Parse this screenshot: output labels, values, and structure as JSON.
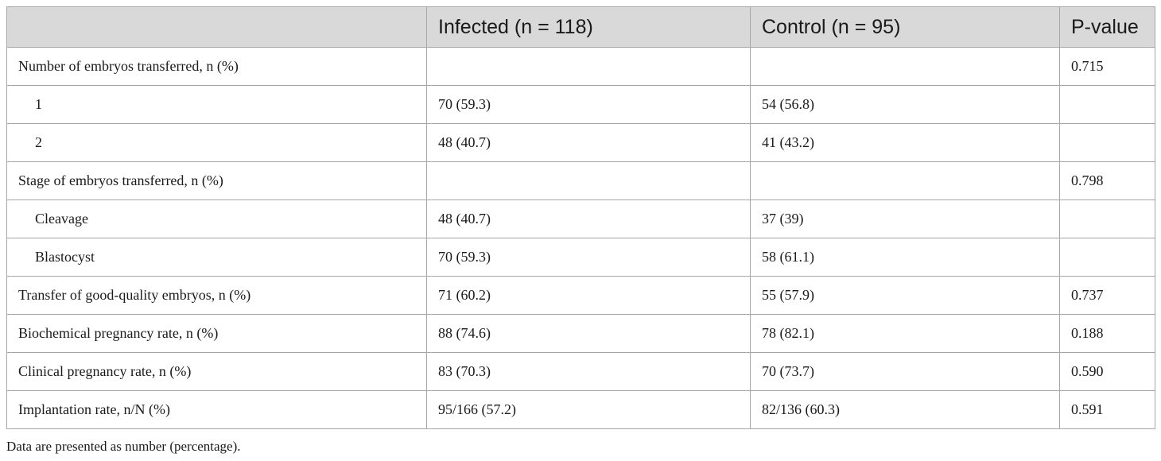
{
  "table": {
    "headers": [
      "",
      "Infected (n = 118)",
      "Control (n = 95)",
      "P-value"
    ],
    "rows": [
      {
        "label": "Number of embryos transferred, n (%)",
        "infected": "",
        "control": "",
        "p": "0.715",
        "indent": false
      },
      {
        "label": "1",
        "infected": "70 (59.3)",
        "control": "54 (56.8)",
        "p": "",
        "indent": true
      },
      {
        "label": "2",
        "infected": "48 (40.7)",
        "control": "41 (43.2)",
        "p": "",
        "indent": true
      },
      {
        "label": "Stage of embryos transferred, n (%)",
        "infected": "",
        "control": "",
        "p": "0.798",
        "indent": false
      },
      {
        "label": "Cleavage",
        "infected": "48 (40.7)",
        "control": "37 (39)",
        "p": "",
        "indent": true
      },
      {
        "label": "Blastocyst",
        "infected": "70 (59.3)",
        "control": "58 (61.1)",
        "p": "",
        "indent": true
      },
      {
        "label": "Transfer of good-quality embryos, n (%)",
        "infected": "71 (60.2)",
        "control": "55 (57.9)",
        "p": "0.737",
        "indent": false
      },
      {
        "label": "Biochemical pregnancy rate, n (%)",
        "infected": "88 (74.6)",
        "control": "78 (82.1)",
        "p": "0.188",
        "indent": false
      },
      {
        "label": "Clinical pregnancy rate, n (%)",
        "infected": "83 (70.3)",
        "control": "70 (73.7)",
        "p": "0.590",
        "indent": false
      },
      {
        "label": "Implantation rate, n/N (%)",
        "infected": "95/166 (57.2)",
        "control": "82/136 (60.3)",
        "p": "0.591",
        "indent": false
      }
    ]
  },
  "footnote": "Data are presented as number (percentage).",
  "colors": {
    "header_bg": "#d9d9d9",
    "border": "#a7a7a7",
    "text": "#1a1a1a"
  }
}
